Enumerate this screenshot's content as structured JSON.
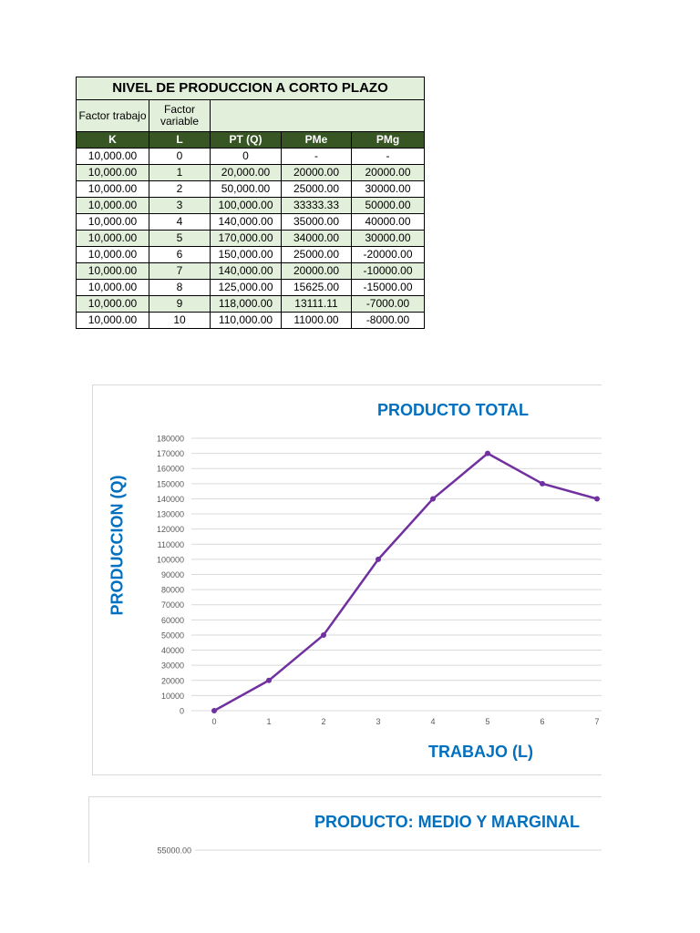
{
  "table": {
    "title": "NIVEL DE PRODUCCION A CORTO PLAZO",
    "sub_headers": [
      "Factor trabajo",
      "Factor variable",
      ""
    ],
    "headers": [
      "K",
      "L",
      "PT (Q)",
      "PMe",
      "PMg"
    ],
    "rows": [
      [
        "10,000.00",
        "0",
        "0",
        "-",
        "-"
      ],
      [
        "10,000.00",
        "1",
        "20,000.00",
        "20000.00",
        "20000.00"
      ],
      [
        "10,000.00",
        "2",
        "50,000.00",
        "25000.00",
        "30000.00"
      ],
      [
        "10,000.00",
        "3",
        "100,000.00",
        "33333.33",
        "50000.00"
      ],
      [
        "10,000.00",
        "4",
        "140,000.00",
        "35000.00",
        "40000.00"
      ],
      [
        "10,000.00",
        "5",
        "170,000.00",
        "34000.00",
        "30000.00"
      ],
      [
        "10,000.00",
        "6",
        "150,000.00",
        "25000.00",
        "-20000.00"
      ],
      [
        "10,000.00",
        "7",
        "140,000.00",
        "20000.00",
        "-10000.00"
      ],
      [
        "10,000.00",
        "8",
        "125,000.00",
        "15625.00",
        "-15000.00"
      ],
      [
        "10,000.00",
        "9",
        "118,000.00",
        "13111.11",
        "-7000.00"
      ],
      [
        "10,000.00",
        "10",
        "110,000.00",
        "11000.00",
        "-8000.00"
      ]
    ]
  },
  "chart_data": [
    {
      "type": "line",
      "title": "PRODUCTO TOTAL",
      "xlabel": "TRABAJO (L)",
      "ylabel": "PRODUCCION (Q)",
      "x": [
        0,
        1,
        2,
        3,
        4,
        5,
        6,
        7
      ],
      "series": [
        {
          "values": [
            0,
            20000,
            50000,
            100000,
            140000,
            170000,
            150000,
            140000
          ]
        }
      ],
      "yticks": [
        "0",
        "10000",
        "20000",
        "30000",
        "40000",
        "50000",
        "60000",
        "70000",
        "80000",
        "90000",
        "100000",
        "110000",
        "120000",
        "130000",
        "140000",
        "150000",
        "160000",
        "170000",
        "180000"
      ],
      "xticks": [
        "0",
        "1",
        "2",
        "3",
        "4",
        "5",
        "6",
        "7"
      ],
      "ylim": [
        0,
        180000
      ],
      "grid": true,
      "colors": {
        "line": "#7030a0",
        "title": "#0070c0",
        "grid": "#d9d9d9",
        "tick_text": "#595959"
      }
    },
    {
      "type": "line",
      "title": "PRODUCTO: MEDIO Y MARGINAL",
      "yticks_visible": [
        "55000.00"
      ],
      "grid": true
    }
  ]
}
